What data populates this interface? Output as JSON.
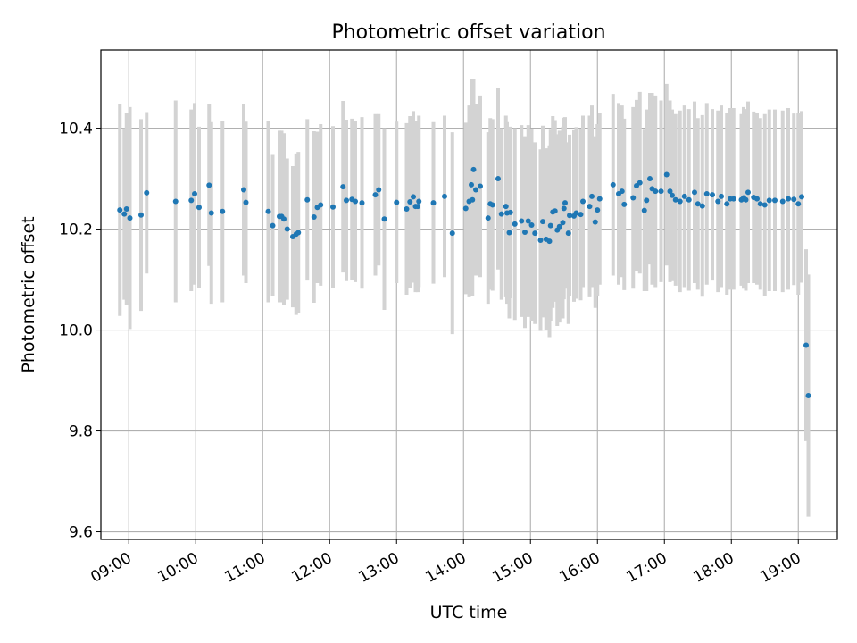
{
  "chart_data": {
    "type": "scatter",
    "title": "Photometric offset variation",
    "xlabel": "UTC time",
    "ylabel": "Photometric offset",
    "grid": true,
    "xlim": [
      "08:35",
      "19:35"
    ],
    "ylim": [
      9.585,
      10.555
    ],
    "x_ticks": [
      "09:00",
      "10:00",
      "11:00",
      "12:00",
      "13:00",
      "14:00",
      "15:00",
      "16:00",
      "17:00",
      "18:00",
      "19:00"
    ],
    "y_ticks": [
      9.6,
      9.8,
      10.0,
      10.2,
      10.4
    ],
    "y_tick_labels": [
      "9.6",
      "9.8",
      "10.0",
      "10.2",
      "10.4"
    ],
    "point_color": "#1f77b4",
    "errorbar_color": "#d3d3d3",
    "series": [
      {
        "x": [
          "08:52",
          "08:56",
          "08:58",
          "09:01",
          "09:11",
          "09:16",
          "09:42",
          "09:56",
          "09:59",
          "10:03",
          "10:12",
          "10:14",
          "10:24",
          "10:43",
          "10:45",
          "11:05",
          "11:09",
          "11:15",
          "11:17",
          "11:19",
          "11:22",
          "11:27",
          "11:30",
          "11:32",
          "11:40",
          "11:46",
          "11:49",
          "11:52",
          "12:03",
          "12:12",
          "12:15",
          "12:20",
          "12:23",
          "12:29",
          "12:41",
          "12:44",
          "12:49",
          "13:00",
          "13:09",
          "13:12",
          "13:15",
          "13:17",
          "13:19",
          "13:20",
          "13:33",
          "13:43",
          "13:50",
          "14:02",
          "14:05",
          "14:07",
          "14:08",
          "14:09",
          "14:11",
          "14:15",
          "14:22",
          "14:24",
          "14:26",
          "14:31",
          "14:34",
          "14:38",
          "14:39",
          "14:41",
          "14:42",
          "14:46",
          "14:52",
          "14:55",
          "14:58",
          "15:01",
          "15:04",
          "15:09",
          "15:11",
          "15:14",
          "15:17",
          "15:18",
          "15:20",
          "15:22",
          "15:24",
          "15:26",
          "15:29",
          "15:30",
          "15:31",
          "15:34",
          "15:35",
          "15:39",
          "15:41",
          "15:45",
          "15:47",
          "15:53",
          "15:55",
          "15:58",
          "16:00",
          "16:02",
          "16:14",
          "16:19",
          "16:22",
          "16:24",
          "16:32",
          "16:35",
          "16:38",
          "16:42",
          "16:44",
          "16:47",
          "16:49",
          "16:52",
          "16:57",
          "17:02",
          "17:05",
          "17:07",
          "17:10",
          "17:14",
          "17:18",
          "17:22",
          "17:27",
          "17:30",
          "17:34",
          "17:38",
          "17:43",
          "17:48",
          "17:51",
          "17:56",
          "17:59",
          "18:02",
          "18:09",
          "18:11",
          "18:13",
          "18:15",
          "18:20",
          "18:23",
          "18:26",
          "18:30",
          "18:34",
          "18:39",
          "18:46",
          "18:51",
          "18:56",
          "19:00",
          "19:03",
          "19:07",
          "19:09"
        ],
        "y": [
          10.238,
          10.23,
          10.24,
          10.222,
          10.228,
          10.272,
          10.255,
          10.257,
          10.27,
          10.243,
          10.287,
          10.232,
          10.235,
          10.278,
          10.253,
          10.235,
          10.207,
          10.225,
          10.225,
          10.22,
          10.2,
          10.185,
          10.19,
          10.193,
          10.258,
          10.224,
          10.243,
          10.248,
          10.244,
          10.284,
          10.257,
          10.259,
          10.255,
          10.252,
          10.268,
          10.278,
          10.22,
          10.253,
          10.24,
          10.254,
          10.264,
          10.245,
          10.245,
          10.255,
          10.252,
          10.265,
          10.192,
          10.241,
          10.255,
          10.288,
          10.258,
          10.318,
          10.278,
          10.285,
          10.222,
          10.25,
          10.248,
          10.3,
          10.23,
          10.245,
          10.232,
          10.193,
          10.233,
          10.21,
          10.216,
          10.194,
          10.216,
          10.208,
          10.192,
          10.178,
          10.215,
          10.18,
          10.176,
          10.207,
          10.234,
          10.236,
          10.198,
          10.205,
          10.213,
          10.241,
          10.252,
          10.192,
          10.227,
          10.226,
          10.232,
          10.229,
          10.255,
          10.245,
          10.265,
          10.214,
          10.238,
          10.26,
          10.288,
          10.27,
          10.275,
          10.249,
          10.262,
          10.286,
          10.292,
          10.237,
          10.257,
          10.3,
          10.28,
          10.275,
          10.275,
          10.308,
          10.275,
          10.267,
          10.258,
          10.255,
          10.265,
          10.258,
          10.273,
          10.25,
          10.246,
          10.27,
          10.268,
          10.255,
          10.265,
          10.25,
          10.26,
          10.26,
          10.258,
          10.262,
          10.258,
          10.273,
          10.263,
          10.26,
          10.25,
          10.248,
          10.257,
          10.257,
          10.255,
          10.26,
          10.259,
          10.25,
          10.264,
          9.97,
          9.87
        ],
        "err": [
          0.21,
          0.17,
          0.19,
          0.22,
          0.19,
          0.16,
          0.2,
          0.18,
          0.18,
          0.16,
          0.16,
          0.18,
          0.18,
          0.17,
          0.16,
          0.18,
          0.14,
          0.17,
          0.17,
          0.17,
          0.14,
          0.14,
          0.16,
          0.16,
          0.16,
          0.17,
          0.15,
          0.16,
          0.16,
          0.17,
          0.16,
          0.16,
          0.16,
          0.17,
          0.16,
          0.15,
          0.18,
          0.16,
          0.17,
          0.17,
          0.17,
          0.17,
          0.17,
          0.17,
          0.16,
          0.16,
          0.2,
          0.17,
          0.19,
          0.21,
          0.19,
          0.18,
          0.17,
          0.18,
          0.17,
          0.17,
          0.17,
          0.18,
          0.17,
          0.18,
          0.18,
          0.17,
          0.17,
          0.19,
          0.19,
          0.19,
          0.19,
          0.19,
          0.18,
          0.18,
          0.19,
          0.18,
          0.19,
          0.19,
          0.19,
          0.18,
          0.19,
          0.19,
          0.19,
          0.18,
          0.17,
          0.18,
          0.16,
          0.17,
          0.17,
          0.17,
          0.17,
          0.18,
          0.18,
          0.17,
          0.17,
          0.17,
          0.18,
          0.18,
          0.17,
          0.17,
          0.18,
          0.17,
          0.18,
          0.16,
          0.18,
          0.17,
          0.19,
          0.19,
          0.18,
          0.18,
          0.18,
          0.17,
          0.17,
          0.18,
          0.18,
          0.18,
          0.18,
          0.17,
          0.18,
          0.18,
          0.17,
          0.18,
          0.18,
          0.18,
          0.18,
          0.18,
          0.17,
          0.18,
          0.18,
          0.18,
          0.17,
          0.17,
          0.17,
          0.18,
          0.18,
          0.18,
          0.18,
          0.18,
          0.17,
          0.18,
          0.17,
          0.19,
          0.24
        ]
      }
    ]
  }
}
